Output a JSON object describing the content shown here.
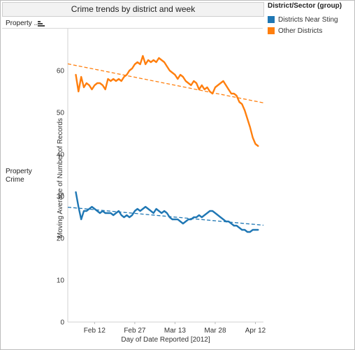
{
  "sheet_title": "Crime trends by district and week",
  "row_header": "Property ..",
  "row_label": "Property Crime",
  "legend": {
    "title": "District/Sector (group)",
    "items": [
      {
        "label": "Districts Near Sting",
        "color": "#1f77b4"
      },
      {
        "label": "Other Districts",
        "color": "#ff7f0e"
      }
    ]
  },
  "chart_data": {
    "type": "line",
    "title": "",
    "xlabel": "Day of Date Reported [2012]",
    "ylabel": "Moving Average of Number of Records",
    "ylim": [
      0,
      70
    ],
    "yticks": [
      0,
      10,
      20,
      30,
      40,
      50,
      60
    ],
    "xlim": [
      "2012-02-02",
      "2012-04-15"
    ],
    "xticks": [
      {
        "date": "2012-02-12",
        "label": "Feb 12"
      },
      {
        "date": "2012-02-27",
        "label": "Feb 27"
      },
      {
        "date": "2012-03-13",
        "label": "Mar 13"
      },
      {
        "date": "2012-03-28",
        "label": "Mar 28"
      },
      {
        "date": "2012-04-12",
        "label": "Apr 12"
      }
    ],
    "series": [
      {
        "name": "Other Districts",
        "color": "#ff7f0e",
        "x": [
          "2012-02-05",
          "2012-02-06",
          "2012-02-07",
          "2012-02-08",
          "2012-02-09",
          "2012-02-10",
          "2012-02-11",
          "2012-02-12",
          "2012-02-13",
          "2012-02-14",
          "2012-02-15",
          "2012-02-16",
          "2012-02-17",
          "2012-02-18",
          "2012-02-19",
          "2012-02-20",
          "2012-02-21",
          "2012-02-22",
          "2012-02-23",
          "2012-02-24",
          "2012-02-25",
          "2012-02-26",
          "2012-02-27",
          "2012-02-28",
          "2012-02-29",
          "2012-03-01",
          "2012-03-02",
          "2012-03-03",
          "2012-03-04",
          "2012-03-05",
          "2012-03-06",
          "2012-03-07",
          "2012-03-08",
          "2012-03-09",
          "2012-03-10",
          "2012-03-11",
          "2012-03-12",
          "2012-03-13",
          "2012-03-14",
          "2012-03-15",
          "2012-03-16",
          "2012-03-17",
          "2012-03-18",
          "2012-03-19",
          "2012-03-20",
          "2012-03-21",
          "2012-03-22",
          "2012-03-23",
          "2012-03-24",
          "2012-03-25",
          "2012-03-26",
          "2012-03-27",
          "2012-03-28",
          "2012-03-29",
          "2012-03-30",
          "2012-03-31",
          "2012-04-01",
          "2012-04-02",
          "2012-04-03",
          "2012-04-04",
          "2012-04-05",
          "2012-04-06",
          "2012-04-07",
          "2012-04-08",
          "2012-04-09",
          "2012-04-10",
          "2012-04-11",
          "2012-04-12",
          "2012-04-13"
        ],
        "values": [
          59,
          55,
          58.5,
          56,
          57,
          56.5,
          55.5,
          56.5,
          57,
          57,
          56.5,
          55.5,
          58,
          57.5,
          58,
          57.5,
          58,
          57.5,
          58.5,
          59,
          60,
          60.5,
          61.5,
          62,
          61.5,
          63.5,
          61.5,
          62.5,
          62,
          62.5,
          62,
          63,
          62.5,
          62,
          61,
          60,
          59.5,
          59,
          58,
          59,
          58.5,
          57.5,
          57,
          56.5,
          57.5,
          57,
          55.5,
          56.5,
          55.5,
          56,
          55,
          54.5,
          56,
          56.5,
          57,
          57.5,
          56.5,
          55.5,
          54.5,
          54.5,
          54,
          52.5,
          52,
          50.5,
          48.5,
          46.5,
          44,
          42.5,
          42
        ]
      },
      {
        "name": "Districts Near Sting",
        "color": "#1f77b4",
        "x": [
          "2012-02-05",
          "2012-02-06",
          "2012-02-07",
          "2012-02-08",
          "2012-02-09",
          "2012-02-10",
          "2012-02-11",
          "2012-02-12",
          "2012-02-13",
          "2012-02-14",
          "2012-02-15",
          "2012-02-16",
          "2012-02-17",
          "2012-02-18",
          "2012-02-19",
          "2012-02-20",
          "2012-02-21",
          "2012-02-22",
          "2012-02-23",
          "2012-02-24",
          "2012-02-25",
          "2012-02-26",
          "2012-02-27",
          "2012-02-28",
          "2012-02-29",
          "2012-03-01",
          "2012-03-02",
          "2012-03-03",
          "2012-03-04",
          "2012-03-05",
          "2012-03-06",
          "2012-03-07",
          "2012-03-08",
          "2012-03-09",
          "2012-03-10",
          "2012-03-11",
          "2012-03-12",
          "2012-03-13",
          "2012-03-14",
          "2012-03-15",
          "2012-03-16",
          "2012-03-17",
          "2012-03-18",
          "2012-03-19",
          "2012-03-20",
          "2012-03-21",
          "2012-03-22",
          "2012-03-23",
          "2012-03-24",
          "2012-03-25",
          "2012-03-26",
          "2012-03-27",
          "2012-03-28",
          "2012-03-29",
          "2012-03-30",
          "2012-03-31",
          "2012-04-01",
          "2012-04-02",
          "2012-04-03",
          "2012-04-04",
          "2012-04-05",
          "2012-04-06",
          "2012-04-07",
          "2012-04-08",
          "2012-04-09",
          "2012-04-10",
          "2012-04-11",
          "2012-04-12",
          "2012-04-13"
        ],
        "values": [
          31,
          27.5,
          24.5,
          26.5,
          26.5,
          27,
          27.5,
          27,
          26.5,
          26,
          26.5,
          26,
          26,
          26,
          25.5,
          26,
          26.5,
          25.5,
          25,
          25.5,
          25,
          25.5,
          26.5,
          27,
          26.5,
          27,
          27.5,
          27,
          26.5,
          26,
          27,
          26.5,
          26,
          26.5,
          26,
          25,
          24.5,
          24.5,
          24.5,
          24,
          23.5,
          24,
          24.5,
          24.5,
          25,
          25,
          25.5,
          25,
          25.5,
          26,
          26.5,
          26.5,
          26,
          25.5,
          25,
          24.5,
          24,
          24,
          23.5,
          23,
          23,
          22.5,
          22,
          22,
          21.5,
          21.5,
          22,
          22,
          22
        ]
      }
    ],
    "trend_lines": [
      {
        "series": "Other Districts",
        "from": {
          "x": "2012-02-02",
          "y": 61.6
        },
        "to": {
          "x": "2012-04-15",
          "y": 52.3
        }
      },
      {
        "series": "Districts Near Sting",
        "from": {
          "x": "2012-02-02",
          "y": 27.4
        },
        "to": {
          "x": "2012-04-15",
          "y": 23.1
        }
      }
    ]
  }
}
